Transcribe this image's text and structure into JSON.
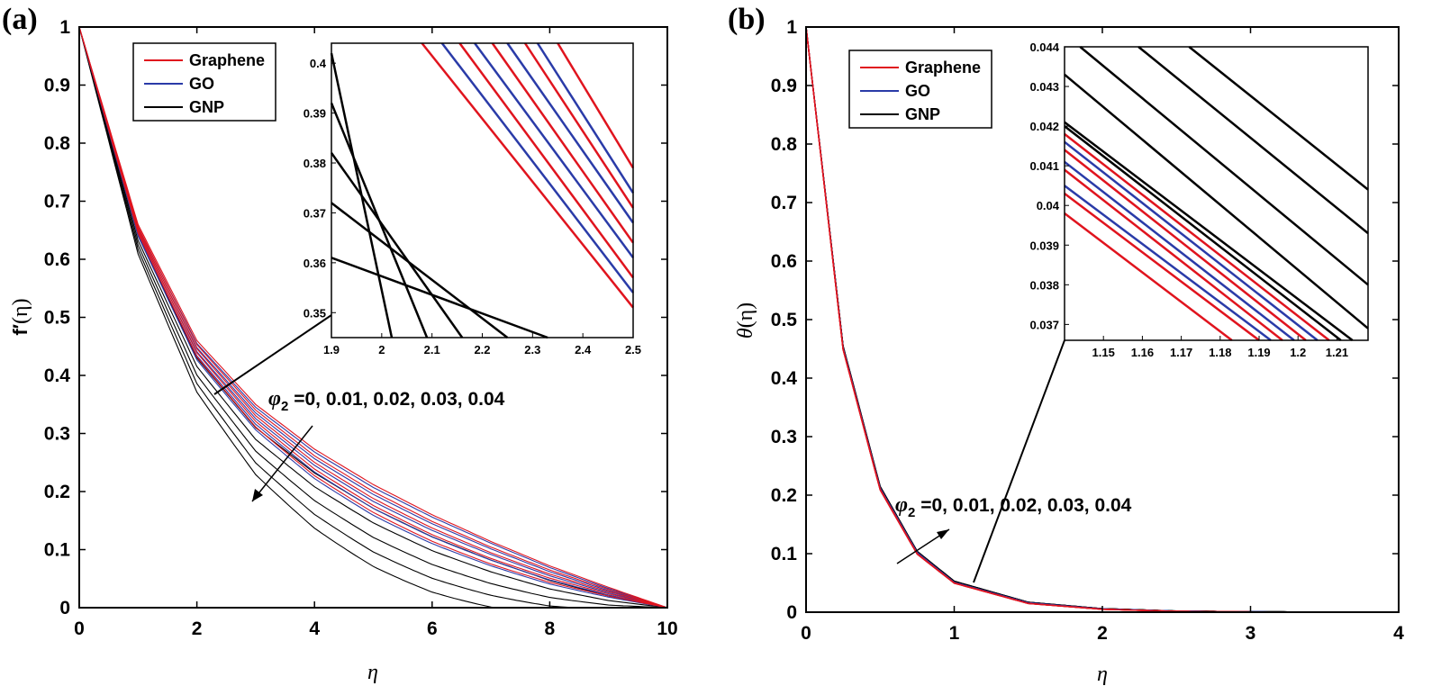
{
  "chart_data": [
    {
      "panel": "(a)",
      "type": "line",
      "ylabel_main": "f",
      "ylabel_prime": "′",
      "ylabel_arg": "(η)",
      "xlabel": "η",
      "xlim": [
        0,
        10
      ],
      "ylim": [
        0,
        1
      ],
      "xticks": [
        0,
        2,
        4,
        6,
        8,
        10
      ],
      "yticks": [
        0,
        0.1,
        0.2,
        0.3,
        0.4,
        0.5,
        0.6,
        0.7,
        0.8,
        0.9,
        1
      ],
      "legend": [
        {
          "name": "Graphene",
          "color": "#e0141e"
        },
        {
          "name": "GO",
          "color": "#2a3ba8"
        },
        {
          "name": "GNP",
          "color": "#000000"
        }
      ],
      "legend_position": "top-left",
      "annotation": {
        "phi": "φ",
        "sub": "2",
        "rest": " =0, 0.01, 0.02, 0.03, 0.04"
      },
      "phi2_values": [
        0,
        0.01,
        0.02,
        0.03,
        0.04
      ],
      "series": [
        {
          "name": "Graphene",
          "color": "#e0141e",
          "x": [
            0,
            1,
            2,
            3,
            4,
            5,
            6,
            7,
            8,
            9,
            10
          ],
          "values_phi0": [
            1,
            0.66,
            0.46,
            0.35,
            0.273,
            0.212,
            0.16,
            0.114,
            0.072,
            0.035,
            0
          ]
        },
        {
          "name": "GO",
          "color": "#2a3ba8",
          "x": [
            0,
            1,
            2,
            3,
            4,
            5,
            6,
            7,
            8,
            9,
            10
          ],
          "values_phi0": [
            1,
            0.655,
            0.455,
            0.345,
            0.268,
            0.207,
            0.156,
            0.111,
            0.069,
            0.033,
            0
          ]
        },
        {
          "name": "GNP",
          "color": "#000000",
          "x": [
            0,
            1,
            2,
            3,
            4,
            5,
            6,
            7,
            8,
            9,
            10
          ],
          "values_phi0": [
            1,
            0.64,
            0.43,
            0.31,
            0.232,
            0.171,
            0.122,
            0.082,
            0.047,
            0.02,
            0
          ]
        }
      ],
      "inset": {
        "xlim": [
          1.9,
          2.5
        ],
        "ylim": [
          0.345,
          0.404
        ],
        "xticks": [
          1.9,
          2,
          2.1,
          2.2,
          2.3,
          2.4,
          2.5
        ],
        "yticks": [
          0.35,
          0.36,
          0.37,
          0.38,
          0.39,
          0.4
        ],
        "lines": [
          {
            "color": "#000000",
            "x": [
              1.9,
              2.02
            ],
            "y": [
              0.402,
              0.345
            ]
          },
          {
            "color": "#000000",
            "x": [
              1.9,
              2.09
            ],
            "y": [
              0.392,
              0.345
            ]
          },
          {
            "color": "#000000",
            "x": [
              1.9,
              2.16
            ],
            "y": [
              0.382,
              0.345
            ]
          },
          {
            "color": "#000000",
            "x": [
              1.9,
              2.25
            ],
            "y": [
              0.372,
              0.345
            ]
          },
          {
            "color": "#000000",
            "x": [
              1.9,
              2.33
            ],
            "y": [
              0.361,
              0.345
            ]
          },
          {
            "color": "#e0141e",
            "x": [
              2.08,
              2.5
            ],
            "y": [
              0.404,
              0.351
            ]
          },
          {
            "color": "#2a3ba8",
            "x": [
              2.12,
              2.5
            ],
            "y": [
              0.404,
              0.354
            ]
          },
          {
            "color": "#e0141e",
            "x": [
              2.155,
              2.5
            ],
            "y": [
              0.404,
              0.357
            ]
          },
          {
            "color": "#2a3ba8",
            "x": [
              2.185,
              2.5
            ],
            "y": [
              0.404,
              0.361
            ]
          },
          {
            "color": "#e0141e",
            "x": [
              2.22,
              2.5
            ],
            "y": [
              0.404,
              0.364
            ]
          },
          {
            "color": "#2a3ba8",
            "x": [
              2.25,
              2.5
            ],
            "y": [
              0.404,
              0.368
            ]
          },
          {
            "color": "#e0141e",
            "x": [
              2.285,
              2.5
            ],
            "y": [
              0.404,
              0.371
            ]
          },
          {
            "color": "#2a3ba8",
            "x": [
              2.31,
              2.5
            ],
            "y": [
              0.404,
              0.374
            ]
          },
          {
            "color": "#e0141e",
            "x": [
              2.35,
              2.5
            ],
            "y": [
              0.404,
              0.379
            ]
          }
        ]
      }
    },
    {
      "panel": "(b)",
      "type": "line",
      "ylabel_main": "θ",
      "ylabel_arg": "(η)",
      "xlabel": "η",
      "xlim": [
        0,
        4
      ],
      "ylim": [
        0,
        1
      ],
      "xticks": [
        0,
        1,
        2,
        3,
        4
      ],
      "yticks": [
        0,
        0.1,
        0.2,
        0.3,
        0.4,
        0.5,
        0.6,
        0.7,
        0.8,
        0.9,
        1
      ],
      "legend": [
        {
          "name": "Graphene",
          "color": "#e0141e"
        },
        {
          "name": "GO",
          "color": "#2a3ba8"
        },
        {
          "name": "GNP",
          "color": "#000000"
        }
      ],
      "legend_position": "top-left",
      "annotation": {
        "phi": "φ",
        "sub": "2",
        "rest": " =0, 0.01, 0.02, 0.03, 0.04"
      },
      "phi2_values": [
        0,
        0.01,
        0.02,
        0.03,
        0.04
      ],
      "series": [
        {
          "name": "Graphene",
          "color": "#e0141e",
          "x": [
            0,
            0.25,
            0.5,
            0.75,
            1,
            1.5,
            2,
            2.5,
            3,
            4
          ],
          "values_phi0": [
            1,
            0.45,
            0.21,
            0.1,
            0.05,
            0.015,
            0.005,
            0.0015,
            0.0005,
            0
          ]
        },
        {
          "name": "GO",
          "color": "#2a3ba8",
          "x": [
            0,
            0.25,
            0.5,
            0.75,
            1,
            1.5,
            2,
            2.5,
            3,
            4
          ],
          "values_phi0": [
            1,
            0.452,
            0.212,
            0.102,
            0.051,
            0.016,
            0.0055,
            0.0017,
            0.0006,
            0
          ]
        },
        {
          "name": "GNP",
          "color": "#000000",
          "x": [
            0,
            0.25,
            0.5,
            0.75,
            1,
            1.5,
            2,
            2.5,
            3,
            4
          ],
          "values_phi0": [
            1,
            0.455,
            0.215,
            0.104,
            0.053,
            0.017,
            0.006,
            0.002,
            0.0007,
            0
          ]
        }
      ],
      "inset": {
        "xlim": [
          1.14,
          1.218
        ],
        "ylim": [
          0.0366,
          0.044
        ],
        "xticks": [
          1.15,
          1.16,
          1.17,
          1.18,
          1.19,
          1.2,
          1.21
        ],
        "yticks": [
          0.037,
          0.038,
          0.039,
          0.04,
          0.041,
          0.042,
          0.043,
          0.044
        ],
        "lines": [
          {
            "color": "#e0141e",
            "x": [
              1.14,
              1.183
            ],
            "y": [
              0.0398,
              0.0366
            ]
          },
          {
            "color": "#e0141e",
            "x": [
              1.14,
              1.19
            ],
            "y": [
              0.0403,
              0.0366
            ]
          },
          {
            "color": "#2a3ba8",
            "x": [
              1.14,
              1.193
            ],
            "y": [
              0.0405,
              0.0366
            ]
          },
          {
            "color": "#e0141e",
            "x": [
              1.14,
              1.196
            ],
            "y": [
              0.0409,
              0.0366
            ]
          },
          {
            "color": "#2a3ba8",
            "x": [
              1.14,
              1.199
            ],
            "y": [
              0.0411,
              0.0366
            ]
          },
          {
            "color": "#e0141e",
            "x": [
              1.14,
              1.202
            ],
            "y": [
              0.0414,
              0.0366
            ]
          },
          {
            "color": "#2a3ba8",
            "x": [
              1.14,
              1.205
            ],
            "y": [
              0.0416,
              0.0366
            ]
          },
          {
            "color": "#e0141e",
            "x": [
              1.14,
              1.208
            ],
            "y": [
              0.0418,
              0.0366
            ]
          },
          {
            "color": "#000000",
            "x": [
              1.14,
              1.211
            ],
            "y": [
              0.042,
              0.0366
            ]
          },
          {
            "color": "#000000",
            "x": [
              1.14,
              1.214
            ],
            "y": [
              0.0421,
              0.0366
            ]
          },
          {
            "color": "#000000",
            "x": [
              1.14,
              1.218
            ],
            "y": [
              0.0433,
              0.0369
            ]
          },
          {
            "color": "#000000",
            "x": [
              1.144,
              1.218
            ],
            "y": [
              0.044,
              0.038
            ]
          },
          {
            "color": "#000000",
            "x": [
              1.159,
              1.218
            ],
            "y": [
              0.044,
              0.0393
            ]
          },
          {
            "color": "#000000",
            "x": [
              1.172,
              1.218
            ],
            "y": [
              0.044,
              0.0404
            ]
          }
        ]
      }
    }
  ]
}
